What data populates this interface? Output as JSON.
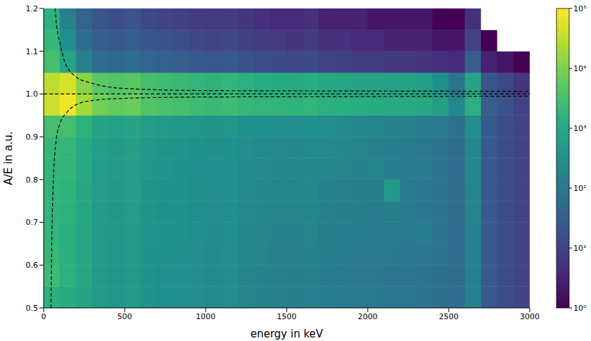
{
  "chart_data": {
    "type": "heatmap",
    "x_label": "energy in keV",
    "y_label": "A/E in a.u.",
    "xlim": [
      0,
      3000
    ],
    "xticks": [
      0,
      500,
      1000,
      1500,
      2000,
      2500,
      3000
    ],
    "ylim": [
      0.5,
      1.2
    ],
    "yticks": [
      0.5,
      0.6,
      0.7,
      0.8,
      0.9,
      {
        "value": 1,
        "label": "1.0"
      },
      1.1,
      1.2
    ],
    "grid": false,
    "x_bins": [
      0,
      100,
      200,
      300,
      400,
      500,
      600,
      700,
      800,
      900,
      1000,
      1100,
      1200,
      1300,
      1400,
      1500,
      1600,
      1700,
      1800,
      1900,
      2000,
      2100,
      2200,
      2300,
      2400,
      2500,
      2600,
      2700,
      2800,
      2900,
      3000
    ],
    "y_bins": [
      0.5,
      0.55,
      0.6,
      0.65,
      0.7,
      0.75,
      0.8,
      0.85,
      0.9,
      0.95,
      1,
      1.05,
      1.1,
      1.15,
      1.2
    ],
    "cells": [
      [
        1500,
        1200,
        800,
        500,
        400,
        500,
        350,
        300,
        300,
        250,
        220,
        250,
        180,
        160,
        150,
        140,
        150,
        120,
        110,
        100,
        100,
        90,
        90,
        80,
        70,
        60,
        150,
        25,
        15,
        10
      ],
      [
        2500,
        1500,
        900,
        500,
        400,
        500,
        350,
        300,
        300,
        250,
        220,
        250,
        180,
        160,
        150,
        140,
        150,
        120,
        110,
        100,
        100,
        90,
        90,
        80,
        70,
        60,
        150,
        25,
        15,
        10
      ],
      [
        2000,
        1400,
        900,
        500,
        400,
        500,
        350,
        320,
        300,
        260,
        230,
        260,
        190,
        170,
        150,
        150,
        160,
        130,
        120,
        110,
        100,
        100,
        90,
        90,
        80,
        60,
        160,
        25,
        15,
        10
      ],
      [
        1800,
        1400,
        900,
        500,
        420,
        520,
        360,
        330,
        310,
        270,
        240,
        270,
        200,
        180,
        160,
        160,
        170,
        140,
        130,
        120,
        110,
        110,
        100,
        120,
        80,
        60,
        160,
        25,
        15,
        10
      ],
      [
        1700,
        1500,
        950,
        520,
        430,
        540,
        370,
        340,
        320,
        280,
        250,
        280,
        210,
        190,
        170,
        170,
        180,
        150,
        140,
        130,
        120,
        140,
        120,
        90,
        80,
        60,
        170,
        25,
        15,
        10
      ],
      [
        1700,
        1600,
        1000,
        540,
        450,
        560,
        380,
        350,
        330,
        290,
        260,
        290,
        220,
        200,
        180,
        180,
        190,
        160,
        150,
        140,
        140,
        500,
        100,
        90,
        80,
        60,
        180,
        25,
        15,
        10
      ],
      [
        1800,
        1700,
        1050,
        560,
        470,
        580,
        400,
        360,
        340,
        300,
        270,
        300,
        230,
        210,
        190,
        190,
        200,
        180,
        170,
        160,
        180,
        140,
        110,
        100,
        80,
        60,
        190,
        25,
        15,
        10
      ],
      [
        2000,
        1900,
        1100,
        600,
        500,
        620,
        420,
        380,
        360,
        320,
        290,
        320,
        250,
        230,
        210,
        200,
        230,
        210,
        190,
        170,
        150,
        140,
        120,
        100,
        80,
        60,
        200,
        25,
        15,
        10
      ],
      [
        3000,
        3000,
        1500,
        800,
        650,
        800,
        550,
        480,
        450,
        400,
        360,
        400,
        320,
        300,
        280,
        260,
        300,
        250,
        220,
        200,
        180,
        160,
        150,
        130,
        100,
        70,
        250,
        25,
        15,
        10
      ],
      [
        40000,
        80000,
        20000,
        8000,
        6000,
        7000,
        4000,
        3500,
        3000,
        2500,
        2200,
        2500,
        2000,
        1800,
        1700,
        1600,
        1800,
        1500,
        1400,
        1300,
        1200,
        1100,
        1100,
        1000,
        600,
        200,
        1500,
        30,
        18,
        10
      ],
      [
        30000,
        50000,
        12000,
        5000,
        4000,
        5000,
        3000,
        2500,
        2200,
        1800,
        1600,
        1800,
        1500,
        1300,
        1200,
        1100,
        1300,
        1000,
        900,
        800,
        800,
        700,
        700,
        600,
        300,
        80,
        800,
        20,
        12,
        6
      ],
      [
        3000,
        800,
        150,
        60,
        50,
        60,
        40,
        35,
        30,
        25,
        22,
        25,
        18,
        15,
        14,
        12,
        14,
        10,
        9,
        8,
        8,
        7,
        7,
        6,
        5,
        4,
        30,
        3,
        2,
        1
      ],
      [
        2000,
        300,
        60,
        30,
        25,
        30,
        20,
        18,
        15,
        12,
        10,
        12,
        9,
        8,
        7,
        6,
        7,
        5,
        5,
        4,
        4,
        3,
        3,
        3,
        2,
        2,
        10,
        1,
        0,
        0
      ],
      [
        1500,
        150,
        40,
        20,
        15,
        20,
        12,
        10,
        9,
        8,
        7,
        8,
        6,
        5,
        4,
        4,
        5,
        3,
        3,
        3,
        2,
        2,
        2,
        2,
        1,
        1,
        5,
        0,
        0,
        0
      ]
    ],
    "colorbar": {
      "lim": [
        1,
        100000
      ],
      "log": true,
      "ticks": [
        {
          "value": 1,
          "label": "10⁰"
        },
        {
          "value": 10,
          "label": "10¹"
        },
        {
          "value": 100,
          "label": "10²"
        },
        {
          "value": 1000,
          "label": "10³"
        },
        {
          "value": 10000,
          "label": "10⁴"
        },
        {
          "value": 100000,
          "label": "10⁵"
        }
      ]
    },
    "series": [
      {
        "type": "line",
        "color": "#000000",
        "line_style": "dashed",
        "x": [
          70,
          80,
          100,
          130,
          150,
          200,
          300,
          500,
          1000,
          2000,
          3000
        ],
        "values": [
          1.2,
          1.16,
          1.12,
          1.075,
          1.06,
          1.04,
          1.025,
          1.013,
          1.008,
          1.007,
          1.006
        ]
      },
      {
        "type": "line",
        "color": "#000000",
        "line_style": "dashed",
        "x": [
          0,
          3000
        ],
        "values": [
          1,
          1
        ]
      },
      {
        "type": "line",
        "color": "#000000",
        "line_style": "dashed",
        "x": [
          45,
          50,
          60,
          80,
          100,
          150,
          200,
          300,
          500,
          1000,
          2000,
          3000
        ],
        "values": [
          0.5,
          0.65,
          0.8,
          0.9,
          0.93,
          0.96,
          0.975,
          0.985,
          0.99,
          0.993,
          0.994,
          0.995
        ]
      }
    ]
  }
}
